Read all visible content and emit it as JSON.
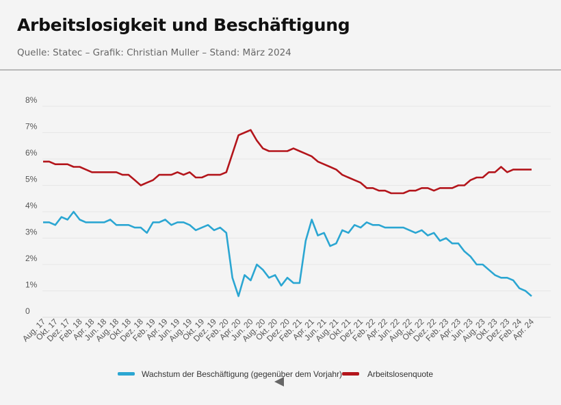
{
  "header": {
    "title": "Arbeitslosigkeit und Beschäftigung",
    "subtitle": "Quelle: Statec – Grafik: Christian Muller – Stand: März 2024"
  },
  "chart_data": {
    "type": "line",
    "title": "Arbeitslosigkeit und Beschäftigung",
    "xlabel": "",
    "ylabel": "",
    "ylim": [
      0,
      8
    ],
    "y_ticks": [
      "0",
      "1%",
      "2%",
      "3%",
      "4%",
      "5%",
      "6%",
      "7%",
      "8%"
    ],
    "x_start": "Aug. 17",
    "x_end": "Apr. 24",
    "x_frequency": "monthly",
    "x_tick_every": 2,
    "x_tick_labels": [
      "Aug. 17",
      "Okt. 17",
      "Dez. 17",
      "Feb. 18",
      "Apr. 18",
      "Jun. 18",
      "Aug. 18",
      "Okt. 18",
      "Dez. 18",
      "Feb. 19",
      "Apr. 19",
      "Jun. 19",
      "Aug. 19",
      "Okt. 19",
      "Dez. 19",
      "Feb. 20",
      "Apr. 20",
      "Jun. 20",
      "Aug. 20",
      "Okt. 20",
      "Dez. 20",
      "Feb. 21",
      "Apr. 21",
      "Jun. 21",
      "Aug. 21",
      "Okt. 21",
      "Dez. 21",
      "Feb. 22",
      "Apr. 22",
      "Jun. 22",
      "Aug. 22",
      "Okt. 22",
      "Dez. 22",
      "Feb. 23",
      "Apr. 23",
      "Jun. 23",
      "Aug. 23",
      "Okt. 23",
      "Dez. 23",
      "Feb. 24",
      "Apr. 24"
    ],
    "grid": true,
    "legend_position": "bottom-center",
    "series": [
      {
        "name": "Wachstum der Beschäftigung (gegenüber dem Vorjahr)",
        "color": "#2ba6d2",
        "values": [
          3.6,
          3.6,
          3.5,
          3.8,
          3.7,
          4.0,
          3.7,
          3.6,
          3.6,
          3.6,
          3.6,
          3.7,
          3.5,
          3.5,
          3.5,
          3.4,
          3.4,
          3.2,
          3.6,
          3.6,
          3.7,
          3.5,
          3.6,
          3.6,
          3.5,
          3.3,
          3.4,
          3.5,
          3.3,
          3.4,
          3.2,
          1.5,
          0.8,
          1.6,
          1.4,
          2.0,
          1.8,
          1.5,
          1.6,
          1.2,
          1.5,
          1.3,
          1.3,
          2.9,
          3.7,
          3.1,
          3.2,
          2.7,
          2.8,
          3.3,
          3.2,
          3.5,
          3.4,
          3.6,
          3.5,
          3.5,
          3.4,
          3.4,
          3.4,
          3.4,
          3.3,
          3.2,
          3.3,
          3.1,
          3.2,
          2.9,
          3.0,
          2.8,
          2.8,
          2.5,
          2.3,
          2.0,
          2.0,
          1.8,
          1.6,
          1.5,
          1.5,
          1.4,
          1.1,
          1.0,
          0.8
        ]
      },
      {
        "name": "Arbeitslosenquote",
        "color": "#b3151b",
        "values": [
          5.9,
          5.9,
          5.8,
          5.8,
          5.8,
          5.7,
          5.7,
          5.6,
          5.5,
          5.5,
          5.5,
          5.5,
          5.5,
          5.4,
          5.4,
          5.2,
          5.0,
          5.1,
          5.2,
          5.4,
          5.4,
          5.4,
          5.5,
          5.4,
          5.5,
          5.3,
          5.3,
          5.4,
          5.4,
          5.4,
          5.5,
          6.2,
          6.9,
          7.0,
          7.1,
          6.7,
          6.4,
          6.3,
          6.3,
          6.3,
          6.3,
          6.4,
          6.3,
          6.2,
          6.1,
          5.9,
          5.8,
          5.7,
          5.6,
          5.4,
          5.3,
          5.2,
          5.1,
          4.9,
          4.9,
          4.8,
          4.8,
          4.7,
          4.7,
          4.7,
          4.8,
          4.8,
          4.9,
          4.9,
          4.8,
          4.9,
          4.9,
          4.9,
          5.0,
          5.0,
          5.2,
          5.3,
          5.3,
          5.5,
          5.5,
          5.7,
          5.5,
          5.6,
          5.6,
          5.6,
          5.6
        ]
      }
    ]
  }
}
